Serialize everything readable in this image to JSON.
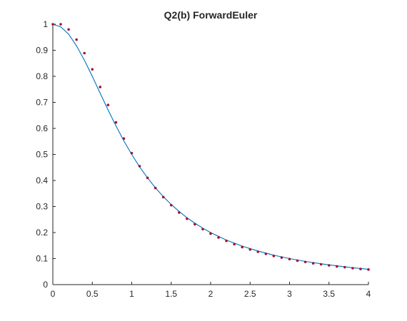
{
  "chart_data": {
    "type": "line",
    "title": "Q2(b) ForwardEuler",
    "xlabel": "",
    "ylabel": "",
    "xlim": [
      0,
      4
    ],
    "ylim": [
      0,
      1
    ],
    "xticks": [
      "0",
      "0.5",
      "1",
      "1.5",
      "2",
      "2.5",
      "3",
      "3.5",
      "4"
    ],
    "yticks": [
      "0",
      "0.1",
      "0.2",
      "0.3",
      "0.4",
      "0.5",
      "0.6",
      "0.7",
      "0.8",
      "0.9",
      "1"
    ],
    "grid": false,
    "legend": "none",
    "series": [
      {
        "style": "line",
        "color": "#0072bd",
        "x": [
          0,
          0.1,
          0.2,
          0.3,
          0.4,
          0.5,
          0.6,
          0.7,
          0.8,
          0.9,
          1.0,
          1.1,
          1.2,
          1.3,
          1.4,
          1.5,
          1.6,
          1.7,
          1.8,
          1.9,
          2.0,
          2.2,
          2.4,
          2.6,
          2.8,
          3.0,
          3.2,
          3.4,
          3.6,
          3.8,
          4.0
        ],
        "values": [
          1.0,
          0.99,
          0.962,
          0.917,
          0.862,
          0.8,
          0.735,
          0.671,
          0.61,
          0.552,
          0.5,
          0.452,
          0.41,
          0.372,
          0.338,
          0.308,
          0.281,
          0.257,
          0.236,
          0.217,
          0.2,
          0.171,
          0.148,
          0.129,
          0.113,
          0.1,
          0.089,
          0.08,
          0.072,
          0.065,
          0.059
        ]
      },
      {
        "style": "markers",
        "color": "#a2142f",
        "x": [
          0,
          0.1,
          0.2,
          0.3,
          0.4,
          0.5,
          0.6,
          0.7,
          0.8,
          0.9,
          1.0,
          1.1,
          1.2,
          1.3,
          1.4,
          1.5,
          1.6,
          1.7,
          1.8,
          1.9,
          2.0,
          2.1,
          2.2,
          2.3,
          2.4,
          2.5,
          2.6,
          2.7,
          2.8,
          2.9,
          3.0,
          3.1,
          3.2,
          3.3,
          3.4,
          3.5,
          3.6,
          3.7,
          3.8,
          3.9,
          4.0
        ],
        "values": [
          1.0,
          1.0,
          0.98,
          0.941,
          0.889,
          0.827,
          0.759,
          0.69,
          0.623,
          0.561,
          0.505,
          0.455,
          0.41,
          0.371,
          0.336,
          0.305,
          0.277,
          0.253,
          0.232,
          0.213,
          0.196,
          0.181,
          0.168,
          0.155,
          0.144,
          0.135,
          0.126,
          0.118,
          0.11,
          0.104,
          0.098,
          0.092,
          0.087,
          0.082,
          0.078,
          0.074,
          0.07,
          0.067,
          0.063,
          0.06,
          0.058
        ]
      }
    ]
  }
}
